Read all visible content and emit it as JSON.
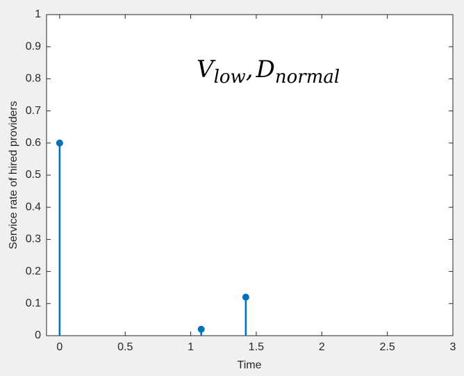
{
  "chart_data": {
    "type": "stem",
    "xlabel": "Time",
    "ylabel": "Service rate of hired providers",
    "annotation": {
      "main1": "V",
      "sub1": "low",
      "sep": ",",
      "main2": "D",
      "sub2": "normal"
    },
    "x": [
      0,
      1.08,
      1.42
    ],
    "values": [
      0.6,
      0.02,
      0.12
    ],
    "color": "#0072bd",
    "xlim": [
      -0.1,
      3
    ],
    "xticks": [
      0,
      0.5,
      1,
      1.5,
      2,
      2.5,
      3
    ],
    "ylim": [
      0,
      1
    ],
    "yticks": [
      0,
      0.1,
      0.2,
      0.3,
      0.4,
      0.5,
      0.6,
      0.7,
      0.8,
      0.9,
      1
    ],
    "grid": false
  }
}
